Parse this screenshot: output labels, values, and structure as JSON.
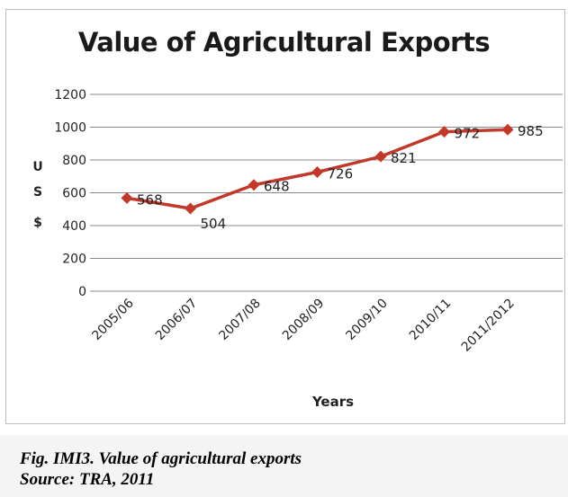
{
  "chart_data": {
    "type": "line",
    "title": "Value of Agricultural Exports",
    "xlabel": "Years",
    "ylabel": "U S $",
    "ylim": [
      0,
      1200
    ],
    "yticks": [
      0,
      200,
      400,
      600,
      800,
      1000,
      1200
    ],
    "grid": true,
    "legend": "none",
    "categories": [
      "2005/06",
      "2006/07",
      "2007/08",
      "2008/09",
      "2009/10",
      "2010/11",
      "2011/2012"
    ],
    "series": [
      {
        "values": [
          568,
          504,
          648,
          726,
          821,
          972,
          985
        ],
        "color": "#c0392b"
      }
    ]
  },
  "caption": {
    "line1": "Fig. IMI3. Value of agricultural exports",
    "line2": "Source: TRA, 2011"
  }
}
